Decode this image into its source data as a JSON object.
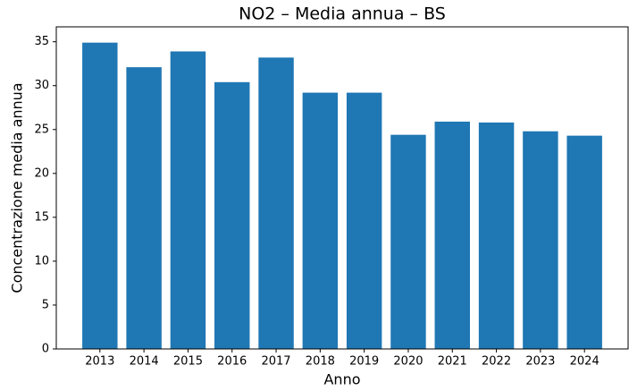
{
  "chart_data": {
    "type": "bar",
    "title": "NO2 – Media annua – BS",
    "x_label": "Anno",
    "y_label": "Concentrazione media annua",
    "categories": [
      "2013",
      "2014",
      "2015",
      "2016",
      "2017",
      "2018",
      "2019",
      "2020",
      "2021",
      "2022",
      "2023",
      "2024"
    ],
    "values": [
      34.9,
      32.1,
      33.9,
      30.4,
      33.2,
      29.2,
      29.2,
      24.4,
      25.9,
      25.8,
      24.8,
      24.3
    ],
    "color": "#1f77b4",
    "ylim": [
      0,
      36.7
    ],
    "yticks": [
      0,
      5,
      10,
      15,
      20,
      25,
      30,
      35
    ],
    "grid": false
  }
}
